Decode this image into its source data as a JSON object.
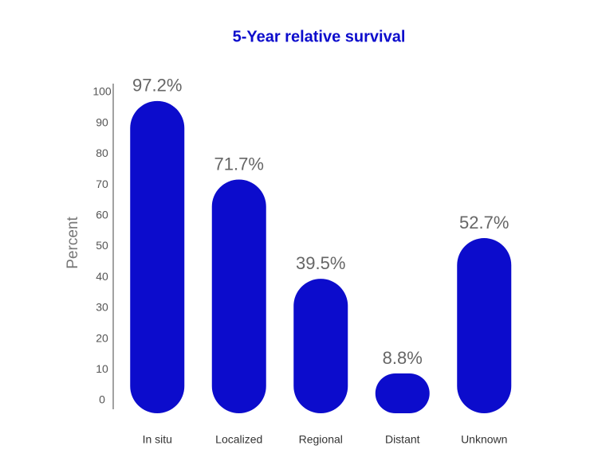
{
  "chart_data": {
    "type": "bar",
    "title": "5-Year relative survival",
    "y_label": "Percent",
    "categories": [
      "In situ",
      "Localized",
      "Regional",
      "Distant",
      "Unknown"
    ],
    "values": [
      97.2,
      71.7,
      39.5,
      8.8,
      52.7
    ],
    "value_labels": [
      "97.2%",
      "71.7%",
      "39.5%",
      "8.8%",
      "52.7%"
    ],
    "color": "#0c0ccc",
    "ylim": [
      0,
      100
    ],
    "yticks": [
      0,
      10,
      20,
      30,
      40,
      50,
      60,
      70,
      80,
      90,
      100
    ],
    "grid": false
  }
}
